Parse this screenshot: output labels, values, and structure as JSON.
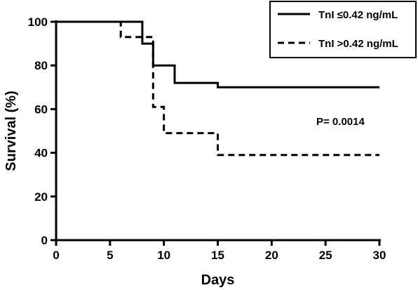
{
  "chart_data": {
    "type": "line",
    "step": true,
    "xlabel": "Days",
    "ylabel": "Survival (%)",
    "xlim": [
      0,
      30
    ],
    "ylim": [
      0,
      100
    ],
    "xticks": [
      0,
      5,
      10,
      15,
      20,
      25,
      30
    ],
    "yticks": [
      0,
      20,
      40,
      60,
      80,
      100
    ],
    "grid": false,
    "legend_position": "top-right",
    "series": [
      {
        "name": "TnI ≤0.42 ng/mL",
        "style": "solid",
        "x": [
          0,
          8,
          9,
          11,
          15,
          30
        ],
        "y": [
          100,
          90,
          80,
          72,
          70,
          70
        ]
      },
      {
        "name": "TnI >0.42 ng/mL",
        "style": "dashed",
        "x": [
          0,
          6,
          9,
          10,
          15,
          30
        ],
        "y": [
          100,
          93,
          61,
          49,
          39,
          39
        ]
      }
    ],
    "annotations": [
      {
        "text": "P= 0.0014"
      }
    ]
  }
}
